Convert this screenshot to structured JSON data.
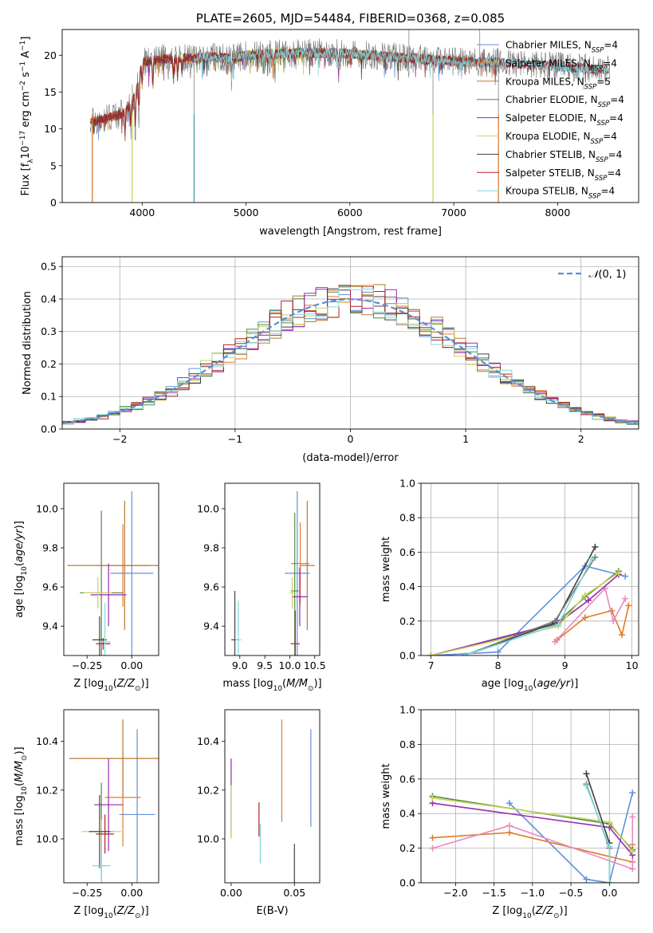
{
  "colors": [
    "#6190dc",
    "#e07b2a",
    "#ba7a2e",
    "#4f8a43",
    "#9a29b0",
    "#c9d35a",
    "#404040",
    "#b0202a",
    "#7fd8dc"
  ],
  "chart_data": [
    {
      "id": "spectrum",
      "type": "line",
      "title": "PLATE=2605, MJD=54484, FIBERID=0368, z=0.085",
      "xlabel": "wavelength [Angstrom, rest frame]",
      "ylabel": "Flux [f_λ 10^-17 erg cm^-2 s^-1 A^-1]",
      "xlim": [
        3230,
        8780
      ],
      "ylim": [
        0,
        23.5
      ],
      "xticks": [
        4000,
        5000,
        6000,
        7000,
        8000
      ],
      "yticks": [
        0,
        5,
        10,
        15,
        20
      ],
      "grid": false,
      "legend_position": "right",
      "series": [
        {
          "name": "Chabrier MILES, N_SSP=4"
        },
        {
          "name": "Salpeter MILES, N_SSP=4"
        },
        {
          "name": "Kroupa MILES, N_SSP=5"
        },
        {
          "name": "Chabrier ELODIE, N_SSP=4"
        },
        {
          "name": "Salpeter ELODIE, N_SSP=4"
        },
        {
          "name": "Kroupa ELODIE, N_SSP=4"
        },
        {
          "name": "Chabrier STELIB, N_SSP=4"
        },
        {
          "name": "Salpeter STELIB, N_SSP=4"
        },
        {
          "name": "Kroupa STELIB, N_SSP=4"
        }
      ],
      "continuum": {
        "x": [
          3500,
          3550,
          3650,
          3800,
          3900,
          3960,
          4000,
          4200,
          4500,
          4700,
          4850,
          5000,
          5300,
          5600,
          5900,
          6200,
          6500,
          6800,
          7100,
          7400,
          7700,
          8000,
          8300,
          8500
        ],
        "y": [
          11.0,
          11.0,
          11.5,
          12.0,
          13.5,
          16.0,
          19.0,
          19.5,
          19.6,
          19.8,
          19.5,
          20.0,
          20.2,
          20.3,
          20.3,
          20.0,
          19.7,
          19.4,
          19.1,
          19.0,
          18.8,
          18.5,
          18.2,
          18.0
        ]
      },
      "model_wavelength_range": {
        "Chabrier MILES, N_SSP=4": [
          3520,
          7430
        ],
        "Salpeter MILES, N_SSP=4": [
          3520,
          7430
        ],
        "Kroupa MILES, N_SSP=5": [
          3520,
          7430
        ],
        "Chabrier ELODIE, N_SSP=4": [
          3900,
          6800
        ],
        "Salpeter ELODIE, N_SSP=4": [
          3900,
          6800
        ],
        "Kroupa ELODIE, N_SSP=4": [
          3900,
          6800
        ],
        "Chabrier STELIB, N_SSP=4": [
          3500,
          8500
        ],
        "Salpeter STELIB, N_SSP=4": [
          3500,
          8500
        ],
        "Kroupa STELIB, N_SSP=4": [
          4500,
          8500
        ]
      }
    },
    {
      "id": "residuals",
      "type": "bar",
      "xlabel": "(data-model)/error",
      "ylabel": "Normed distribution",
      "xlim": [
        -2.5,
        2.5
      ],
      "ylim": [
        0,
        0.53
      ],
      "xticks": [
        -2,
        -1,
        0,
        1,
        2
      ],
      "yticks": [
        0.0,
        0.1,
        0.2,
        0.3,
        0.4,
        0.5
      ],
      "grid": true,
      "legend_position": "top-right",
      "legend": [
        "N(0,1)"
      ],
      "bin_width": 0.1,
      "reference": {
        "name": "N(0,1)",
        "mean": 0,
        "sigma": 1
      }
    },
    {
      "id": "age-vs-Z",
      "type": "scatter",
      "xlabel": "Z [log10(Z/Z_⊙)]",
      "ylabel": "age  [log10(age/yr)]",
      "xlim": [
        -0.38,
        0.15
      ],
      "ylim": [
        9.25,
        10.13
      ],
      "xticks": [
        -0.25,
        0.0
      ],
      "yticks": [
        9.4,
        9.6,
        9.8,
        10.0
      ],
      "points": [
        {
          "x": 0.0,
          "y": 9.67,
          "xerr": 0.12,
          "yerr": 0.42
        },
        {
          "x": -0.05,
          "y": 9.71,
          "xerr": 0.14,
          "yerr": 0.21
        },
        {
          "x": -0.04,
          "y": 9.71,
          "xerr": 0.32,
          "yerr": 0.33
        },
        {
          "x": -0.17,
          "y": 9.57,
          "xerr": 0.12,
          "yerr": 0.42
        },
        {
          "x": -0.13,
          "y": 9.56,
          "xerr": 0.1,
          "yerr": 0.16
        },
        {
          "x": -0.19,
          "y": 9.57,
          "xerr": 0.08,
          "yerr": 0.08
        },
        {
          "x": -0.18,
          "y": 9.33,
          "xerr": 0.04,
          "yerr": 0.12
        },
        {
          "x": -0.16,
          "y": 9.31,
          "xerr": 0.04,
          "yerr": 0.03
        },
        {
          "x": -0.15,
          "y": 9.32,
          "xerr": 0.03,
          "yerr": 0.2
        }
      ]
    },
    {
      "id": "age-vs-mass",
      "type": "scatter",
      "xlabel": "mass [log10(M/M_⊙)]",
      "ylabel": "",
      "xlim": [
        8.7,
        10.6
      ],
      "ylim": [
        9.25,
        10.13
      ],
      "xticks": [
        9.0,
        9.5,
        10.0,
        10.5
      ],
      "yticks": [
        9.4,
        9.6,
        9.8,
        10.0
      ],
      "points": [
        {
          "x": 10.15,
          "y": 9.67,
          "xerr": 0.25,
          "yerr": 0.42
        },
        {
          "x": 10.21,
          "y": 9.72,
          "xerr": 0.18,
          "yerr": 0.21
        },
        {
          "x": 10.35,
          "y": 9.71,
          "xerr": 0.15,
          "yerr": 0.33
        },
        {
          "x": 10.1,
          "y": 9.58,
          "xerr": 0.08,
          "yerr": 0.4
        },
        {
          "x": 10.2,
          "y": 9.55,
          "xerr": 0.15,
          "yerr": 0.15
        },
        {
          "x": 10.05,
          "y": 9.57,
          "xerr": 0.05,
          "yerr": 0.08
        },
        {
          "x": 8.9,
          "y": 9.33,
          "xerr": 0.07,
          "yerr": 0.25
        },
        {
          "x": 10.11,
          "y": 9.31,
          "xerr": 0.09,
          "yerr": 0.17
        },
        {
          "x": 8.97,
          "y": 9.33,
          "xerr": 0.06,
          "yerr": 0.2
        }
      ]
    },
    {
      "id": "massweight-vs-age",
      "type": "line",
      "xlabel": "age  [log10(age/yr)]",
      "ylabel": "mass weight",
      "xlim": [
        6.85,
        10.1
      ],
      "ylim": [
        0.0,
        1.0
      ],
      "xticks": [
        7,
        8,
        9,
        10
      ],
      "yticks": [
        0.0,
        0.2,
        0.4,
        0.6,
        0.8,
        1.0
      ],
      "grid": true,
      "series": [
        {
          "x": [
            7.0,
            8.0,
            9.3,
            9.9
          ],
          "y": [
            0.0,
            0.02,
            0.52,
            0.46
          ]
        },
        {
          "x": [
            8.88,
            9.3,
            9.7,
            9.85,
            9.95
          ],
          "y": [
            0.09,
            0.22,
            0.26,
            0.12,
            0.29
          ]
        },
        {
          "x": [
            8.85,
            9.6,
            9.72,
            9.9
          ],
          "y": [
            0.08,
            0.39,
            0.2,
            0.33
          ]
        },
        {
          "x": [
            7.0,
            8.85,
            9.3,
            9.8
          ],
          "y": [
            0.0,
            0.18,
            0.34,
            0.49
          ]
        },
        {
          "x": [
            7.0,
            8.9,
            9.35,
            9.8
          ],
          "y": [
            0.0,
            0.19,
            0.32,
            0.47
          ]
        },
        {
          "x": [
            7.0,
            8.9,
            9.3,
            9.8
          ],
          "y": [
            0.0,
            0.17,
            0.35,
            0.48
          ]
        },
        {
          "x": [
            7.5,
            8.85,
            9.45
          ],
          "y": [
            0.0,
            0.19,
            0.63
          ]
        },
        {
          "x": [
            7.5,
            8.85,
            9.45
          ],
          "y": [
            0.0,
            0.2,
            0.57
          ]
        },
        {
          "x": [
            7.5,
            8.9,
            9.4
          ],
          "y": [
            0.0,
            0.18,
            0.56
          ]
        }
      ]
    },
    {
      "id": "mass-vs-Z",
      "type": "scatter",
      "xlabel": "Z [log10(Z/Z_⊙)]",
      "ylabel": "mass [log10(M/M_⊙)]",
      "xlim": [
        -0.38,
        0.15
      ],
      "ylim": [
        9.82,
        10.53
      ],
      "xticks": [
        -0.25,
        0.0
      ],
      "yticks": [
        10.0,
        10.2,
        10.4
      ],
      "points": [
        {
          "x": 0.03,
          "y": 10.1,
          "xerr": 0.1,
          "yerr": 0.35
        },
        {
          "x": -0.05,
          "y": 10.17,
          "xerr": 0.1,
          "yerr": 0.2
        },
        {
          "x": -0.05,
          "y": 10.33,
          "xerr": 0.3,
          "yerr": 0.16
        },
        {
          "x": -0.17,
          "y": 10.03,
          "xerr": 0.07,
          "yerr": 0.2
        },
        {
          "x": -0.13,
          "y": 10.14,
          "xerr": 0.08,
          "yerr": 0.19
        },
        {
          "x": -0.17,
          "y": 10.03,
          "xerr": 0.11,
          "yerr": 0.05
        },
        {
          "x": -0.18,
          "y": 10.03,
          "xerr": 0.06,
          "yerr": 0.15
        },
        {
          "x": -0.15,
          "y": 10.02,
          "xerr": 0.05,
          "yerr": 0.08
        },
        {
          "x": -0.17,
          "y": 9.89,
          "xerr": 0.05,
          "yerr": 0.09
        }
      ]
    },
    {
      "id": "mass-vs-ebv",
      "type": "scatter",
      "xlabel": "E(B-V)",
      "ylabel": "",
      "xlim": [
        -0.005,
        0.07
      ],
      "ylim": [
        9.82,
        10.53
      ],
      "xticks": [
        0.0,
        0.05
      ],
      "yticks": [
        10.0,
        10.2,
        10.4
      ],
      "points": [
        {
          "x": 0.063,
          "y": 10.25,
          "xerr": 0,
          "yerr": 0.2
        },
        {
          "x": 0.04,
          "y": 10.28,
          "xerr": 0,
          "yerr": 0.21
        },
        {
          "x": 0.0,
          "y": 10.17,
          "xerr": 0,
          "yerr": 0.16
        },
        {
          "x": 0.05,
          "y": 9.88,
          "xerr": 0,
          "yerr": 0.1
        },
        {
          "x": 0.022,
          "y": 10.08,
          "xerr": 0,
          "yerr": 0.07
        },
        {
          "x": 0.023,
          "y": 9.98,
          "xerr": 0,
          "yerr": 0.08
        }
      ]
    },
    {
      "id": "massweight-vs-Z",
      "type": "line",
      "xlabel": "Z [log10(Z/Z_⊙)]",
      "ylabel": "mass weight",
      "xlim": [
        -2.45,
        0.38
      ],
      "ylim": [
        0.0,
        1.0
      ],
      "xticks": [
        -2.0,
        -1.5,
        -1.0,
        -0.5,
        0.0
      ],
      "yticks": [
        0.0,
        0.2,
        0.4,
        0.6,
        0.8,
        1.0
      ],
      "grid": true,
      "series": [
        {
          "x": [
            -1.3,
            -0.3,
            0.0,
            0.3
          ],
          "y": [
            0.46,
            0.02,
            0.0,
            0.52
          ]
        },
        {
          "x": [
            -2.3,
            -1.3,
            0.3,
            0.3
          ],
          "y": [
            0.26,
            0.29,
            0.12,
            0.22
          ]
        },
        {
          "x": [
            -2.3,
            -1.3,
            0.3,
            0.3
          ],
          "y": [
            0.2,
            0.33,
            0.08,
            0.38
          ]
        },
        {
          "x": [
            -2.3,
            0.0,
            0.3
          ],
          "y": [
            0.5,
            0.34,
            0.19
          ]
        },
        {
          "x": [
            -2.3,
            0.0,
            0.3
          ],
          "y": [
            0.46,
            0.32,
            0.16
          ]
        },
        {
          "x": [
            -2.3,
            0.0,
            0.3
          ],
          "y": [
            0.49,
            0.35,
            0.18
          ]
        },
        {
          "x": [
            -0.3,
            0.0,
            0.0
          ],
          "y": [
            0.63,
            0.23,
            0.0
          ]
        },
        {
          "x": [
            -0.3,
            0.0,
            0.0
          ],
          "y": [
            0.57,
            0.2,
            0.0
          ]
        },
        {
          "x": [
            -0.3,
            0.0,
            0.0
          ],
          "y": [
            0.56,
            0.21,
            0.0
          ]
        }
      ]
    }
  ]
}
